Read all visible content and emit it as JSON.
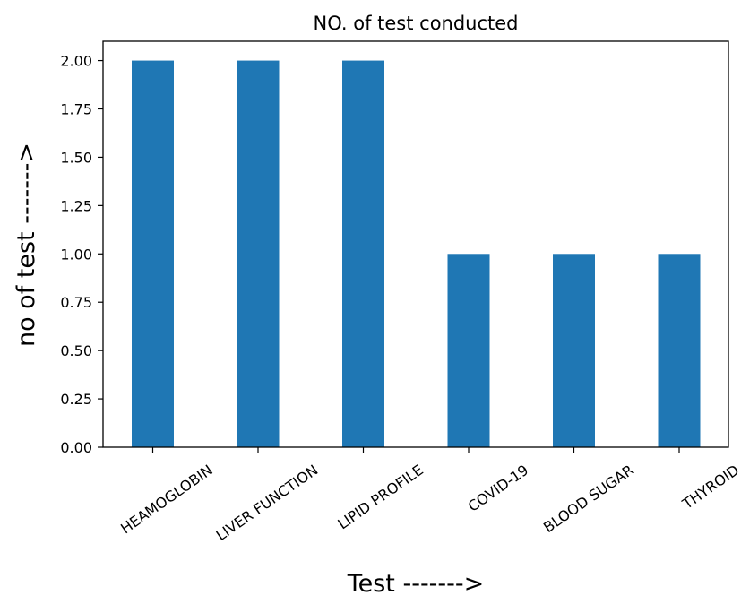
{
  "chart_data": {
    "type": "bar",
    "title": "NO. of test conducted",
    "xlabel": "Test ------->",
    "ylabel": "no of test ------->",
    "categories": [
      "HEAMOGLOBIN",
      "LIVER FUNCTION",
      "LIPID PROFILE",
      "COVID-19",
      "BLOOD SUGAR",
      "THYROID"
    ],
    "values": [
      2,
      2,
      2,
      1,
      1,
      1
    ],
    "ylim": [
      0,
      2.1
    ],
    "yticks": [
      "0.00",
      "0.25",
      "0.50",
      "0.75",
      "1.00",
      "1.25",
      "1.50",
      "1.75",
      "2.00"
    ],
    "bar_color": "#1f77b4",
    "grid": false,
    "legend": false
  }
}
